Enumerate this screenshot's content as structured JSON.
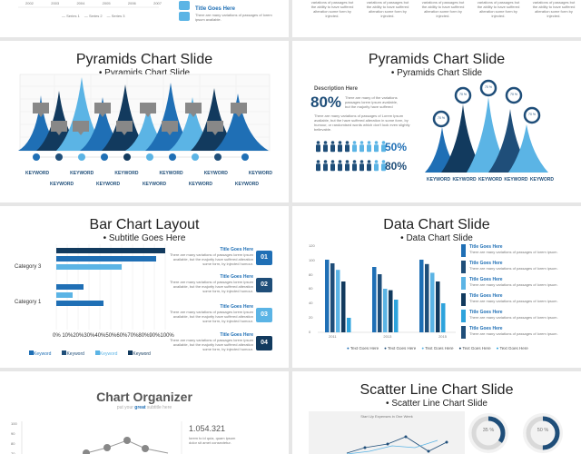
{
  "colors": {
    "dark": "#1f4e79",
    "mid": "#1f6fb5",
    "light": "#5bb4e5",
    "navy": "#123a5e",
    "gray": "#888888"
  },
  "top_left": {
    "years": [
      "2002",
      "2003",
      "2004",
      "2005",
      "2006",
      "2007"
    ],
    "legend": [
      "Series 1",
      "Series 2",
      "Series 3"
    ],
    "title_goes_here": "Title Goes Here",
    "blurb": "There are many variations of passages of lorem ipsum available."
  },
  "top_right": {
    "columns": [
      {
        "text": "variations of passages but the ability to have suffered alteration some form by injected."
      },
      {
        "text": "variations of passages but the ability to have suffered alteration some form by injected."
      },
      {
        "text": "variations of passages but the ability to have suffered alteration some form by injected."
      },
      {
        "text": "variations of passages but the ability to have suffered alteration some form by injected."
      },
      {
        "text": "variations of passages but the ability to have suffered alteration some form by injected."
      }
    ]
  },
  "pyramids1": {
    "title": "Pyramids Chart Slide",
    "subtitle": "• Pyramids Chart Slide",
    "keywords_top": [
      "KEYWORD",
      "KEYWORD",
      "KEYWORD",
      "KEYWORD",
      "KEYWORD",
      "KEYWORD"
    ],
    "keywords_bottom": [
      "KEYWORD",
      "KEYWORD",
      "KEYWORD",
      "KEYWORD",
      "KEYWORD"
    ]
  },
  "pyramids2": {
    "title": "Pyramids Chart Slide",
    "subtitle": "• Pyramids Chart Slide",
    "description_title": "Description Here",
    "big_percent": "80%",
    "big_text": "There are many of the variations passages lorem ipsum available, but the majority have suffered",
    "paragraph": "There are many variations of passages of Lorem Ipsum available, but the have suffered alteration in some form, by humour, or randomised words which don't look even slightly believable.",
    "stat1": "50%",
    "stat2": "80%",
    "pin_label": "70 %",
    "keywords": [
      "KEYWORD",
      "KEYWORD",
      "KEYWORD",
      "KEYWORD",
      "KEYWORD"
    ]
  },
  "bar_layout": {
    "title": "Bar Chart Layout",
    "subtitle": "• Subtitle Goes Here",
    "category3": "Category 3",
    "category1": "Category 1",
    "axis": "0% 10%20%30%40%50%60%70%80%90%100%",
    "legend": [
      "Keyword",
      "Keyword",
      "Keyword",
      "Keyword"
    ],
    "items": [
      {
        "num": "01",
        "title": "Title Goes Here",
        "text": "There are many variations of passages lorem ipsum available, but the majority have suffered alteration some form, by injected humour."
      },
      {
        "num": "02",
        "title": "Title Goes Here",
        "text": "There are many variations of passages lorem ipsum available, but the majority have suffered alteration some form, by injected humour."
      },
      {
        "num": "03",
        "title": "Title Goes Here",
        "text": "There are many variations of passages lorem ipsum available, but the majority have suffered alteration some form, by injected humour."
      },
      {
        "num": "04",
        "title": "Title Goes Here",
        "text": "There are many variations of passages lorem ipsum available, but the majority have suffered alteration some form, by injected humour."
      }
    ]
  },
  "data_chart": {
    "title": "Data Chart Slide",
    "subtitle": "• Data Chart Slide",
    "yticks": [
      "120",
      "100",
      "80",
      "60",
      "40",
      "20",
      "0"
    ],
    "groups": [
      "2011",
      "2013",
      "2015"
    ],
    "legend": [
      "Text Goes Here",
      "Text Goes Here",
      "Text Goes Here",
      "Text Goes Here",
      "Text Goes Here"
    ],
    "items": [
      {
        "title": "Title Goes Here",
        "text": "There are many variations of passages of lorem ipsum."
      },
      {
        "title": "Title Goes Here",
        "text": "There are many variations of passages of lorem ipsum."
      },
      {
        "title": "Title Goes Here",
        "text": "There are many variations of passages of lorem ipsum."
      },
      {
        "title": "Title Goes Here",
        "text": "There are many variations of passages of lorem ipsum."
      },
      {
        "title": "Title Goes Here",
        "text": "There are many variations of passages of lorem ipsum."
      },
      {
        "title": "Title Goes Here",
        "text": "There are many variations of passages of lorem ipsum."
      }
    ]
  },
  "organizer": {
    "title": "Chart Organizer",
    "subtitle_pre": "put your ",
    "subtitle_bold": "great",
    "subtitle_post": " subtitle here",
    "yticks": [
      "100",
      "90",
      "80",
      "70"
    ],
    "value": "1.054.321",
    "value_text": "lorem to id quia, quam ipsum dolor sit amet consectetur."
  },
  "scatter": {
    "title": "Scatter Line Chart Slide",
    "subtitle": "• Scatter Line Chart Slide",
    "chart_title": "Start Up Expenses in One Week",
    "ring1": "35 %",
    "ring2": "50 %"
  }
}
